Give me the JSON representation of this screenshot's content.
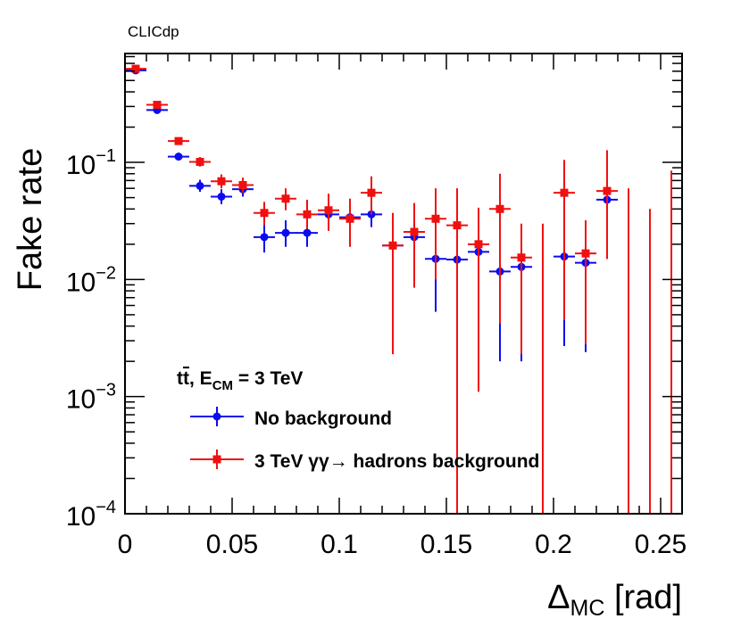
{
  "chart_data": {
    "type": "scatter",
    "watermark": "CLICdp",
    "xlabel": "Δ",
    "xlabel_sub": "MC",
    "xlabel_unit": " [rad]",
    "ylabel": "Fake rate",
    "xlim": [
      0,
      0.26
    ],
    "ylim": [
      0.0001,
      0.85
    ],
    "yscale": "log",
    "x_ticks": [
      0,
      0.05,
      0.1,
      0.15,
      0.2,
      0.25
    ],
    "x_tick_labels": [
      "0",
      "0.05",
      "0.1",
      "0.15",
      "0.2",
      "0.25"
    ],
    "y_ticks": [
      0.1,
      0.01,
      0.001,
      0.0001
    ],
    "y_tick_labels": [
      {
        "base": "10",
        "exp": "−1"
      },
      {
        "base": "10",
        "exp": "−2"
      },
      {
        "base": "10",
        "exp": "−3"
      },
      {
        "base": "10",
        "exp": "−4"
      }
    ],
    "legend": {
      "header_main": "t",
      "header_rest": ", E",
      "header_sub": "CM",
      "header_end": " = 3 TeV",
      "position": "bottom-left"
    },
    "series": [
      {
        "name": "No background",
        "color": "#0b0bf0",
        "marker": "circle",
        "x_half_width": 0.005,
        "points": [
          {
            "x": 0.005,
            "y": 0.61,
            "lo": 0.57,
            "hi": 0.65
          },
          {
            "x": 0.015,
            "y": 0.28,
            "lo": 0.26,
            "hi": 0.3
          },
          {
            "x": 0.025,
            "y": 0.112,
            "lo": 0.104,
            "hi": 0.121
          },
          {
            "x": 0.035,
            "y": 0.063,
            "lo": 0.056,
            "hi": 0.071
          },
          {
            "x": 0.045,
            "y": 0.051,
            "lo": 0.044,
            "hi": 0.059
          },
          {
            "x": 0.055,
            "y": 0.059,
            "lo": 0.051,
            "hi": 0.068
          },
          {
            "x": 0.065,
            "y": 0.023,
            "lo": 0.017,
            "hi": 0.03
          },
          {
            "x": 0.075,
            "y": 0.025,
            "lo": 0.019,
            "hi": 0.032
          },
          {
            "x": 0.085,
            "y": 0.025,
            "lo": 0.019,
            "hi": 0.032
          },
          {
            "x": 0.095,
            "y": 0.036,
            "lo": 0.029,
            "hi": 0.044
          },
          {
            "x": 0.105,
            "y": 0.034,
            "lo": 0.026,
            "hi": 0.043
          },
          {
            "x": 0.115,
            "y": 0.036,
            "lo": 0.028,
            "hi": 0.046
          },
          {
            "x": 0.125,
            "y": 0.0195,
            "lo": 0.01,
            "hi": 0.03
          },
          {
            "x": 0.135,
            "y": 0.023,
            "lo": 0.0115,
            "hi": 0.034
          },
          {
            "x": 0.145,
            "y": 0.015,
            "lo": 0.0053,
            "hi": 0.025
          },
          {
            "x": 0.155,
            "y": 0.0148,
            "lo": 0.0023,
            "hi": 0.027
          },
          {
            "x": 0.165,
            "y": 0.0172,
            "lo": 0.0062,
            "hi": 0.028
          },
          {
            "x": 0.175,
            "y": 0.0117,
            "lo": 0.002,
            "hi": 0.021
          },
          {
            "x": 0.185,
            "y": 0.0128,
            "lo": 0.002,
            "hi": 0.023
          },
          {
            "x": 0.205,
            "y": 0.0157,
            "lo": 0.0027,
            "hi": 0.029
          },
          {
            "x": 0.215,
            "y": 0.0139,
            "lo": 0.0024,
            "hi": 0.025
          },
          {
            "x": 0.225,
            "y": 0.048,
            "lo": 0.015,
            "hi": 0.11
          }
        ]
      },
      {
        "name": "3 TeV  γγ→ hadrons background",
        "color": "#f01010",
        "marker": "square",
        "x_half_width": 0.005,
        "points": [
          {
            "x": 0.005,
            "y": 0.63,
            "lo": 0.59,
            "hi": 0.67
          },
          {
            "x": 0.015,
            "y": 0.31,
            "lo": 0.29,
            "hi": 0.33
          },
          {
            "x": 0.025,
            "y": 0.152,
            "lo": 0.142,
            "hi": 0.163
          },
          {
            "x": 0.035,
            "y": 0.101,
            "lo": 0.092,
            "hi": 0.111
          },
          {
            "x": 0.045,
            "y": 0.069,
            "lo": 0.06,
            "hi": 0.079
          },
          {
            "x": 0.055,
            "y": 0.064,
            "lo": 0.055,
            "hi": 0.074
          },
          {
            "x": 0.065,
            "y": 0.037,
            "lo": 0.029,
            "hi": 0.046
          },
          {
            "x": 0.075,
            "y": 0.049,
            "lo": 0.039,
            "hi": 0.06
          },
          {
            "x": 0.085,
            "y": 0.036,
            "lo": 0.027,
            "hi": 0.048
          },
          {
            "x": 0.095,
            "y": 0.039,
            "lo": 0.026,
            "hi": 0.054
          },
          {
            "x": 0.105,
            "y": 0.033,
            "lo": 0.019,
            "hi": 0.049
          },
          {
            "x": 0.115,
            "y": 0.055,
            "lo": 0.036,
            "hi": 0.076
          },
          {
            "x": 0.125,
            "y": 0.0195,
            "lo": 0.0023,
            "hi": 0.037
          },
          {
            "x": 0.135,
            "y": 0.0255,
            "lo": 0.0085,
            "hi": 0.045
          },
          {
            "x": 0.145,
            "y": 0.033,
            "lo": 0.01,
            "hi": 0.06
          },
          {
            "x": 0.155,
            "y": 0.029,
            "lo": 0.0001,
            "hi": 0.06
          },
          {
            "x": 0.165,
            "y": 0.02,
            "lo": 0.0011,
            "hi": 0.041
          },
          {
            "x": 0.175,
            "y": 0.04,
            "lo": 0.0042,
            "hi": 0.08
          },
          {
            "x": 0.185,
            "y": 0.0154,
            "lo": 0.0023,
            "hi": 0.03
          },
          {
            "x": 0.195,
            "y": 0.0001,
            "lo": 0.0001,
            "hi": 0.03
          },
          {
            "x": 0.205,
            "y": 0.055,
            "lo": 0.0045,
            "hi": 0.105
          },
          {
            "x": 0.215,
            "y": 0.0167,
            "lo": 0.0028,
            "hi": 0.032
          },
          {
            "x": 0.225,
            "y": 0.057,
            "lo": 0.015,
            "hi": 0.127
          },
          {
            "x": 0.235,
            "y": 0.0001,
            "lo": 0.0001,
            "hi": 0.06
          },
          {
            "x": 0.245,
            "y": 0.0001,
            "lo": 0.0001,
            "hi": 0.04
          },
          {
            "x": 0.255,
            "y": 0.0001,
            "lo": 0.0001,
            "hi": 0.085
          }
        ]
      }
    ]
  }
}
